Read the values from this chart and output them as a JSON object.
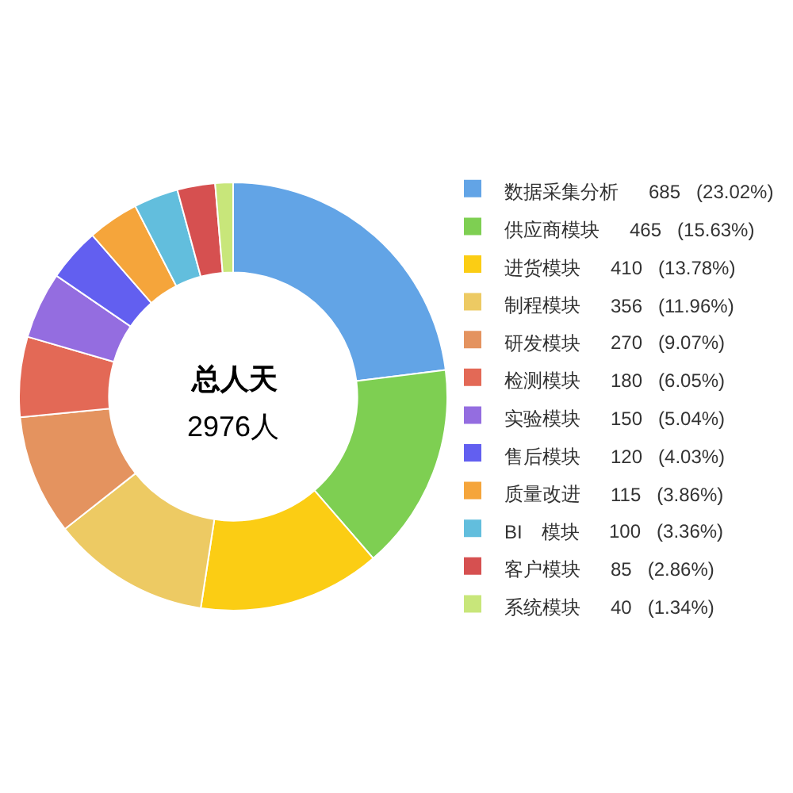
{
  "chart_data": {
    "type": "donut",
    "categories": [
      "数据采集分析",
      "供应商模块",
      "进货模块",
      "制程模块",
      "研发模块",
      "检测模块",
      "实验模块",
      "售后模块",
      "质量改进",
      "BI　模块",
      "客户模块",
      "系统模块"
    ],
    "values": [
      685,
      465,
      410,
      356,
      270,
      180,
      150,
      120,
      115,
      100,
      85,
      40
    ],
    "value_labels": [
      "685 (23.02%)",
      "465 (15.63%)",
      "410 (13.78%)",
      "356 (11.96%)",
      "270 (9.07%)",
      "180 (6.05%)",
      "150 (5.04%)",
      "120 (4.03%)",
      "115 (3.86%)",
      "100 (3.36%)",
      "85 (2.86%)",
      "40 (1.34%)"
    ],
    "colors": [
      "#62a4e6",
      "#7ecf52",
      "#fbcd14",
      "#edca63",
      "#e4935f",
      "#e36956",
      "#946de0",
      "#625ff0",
      "#f5a53b",
      "#62bedd",
      "#d65050",
      "#c8e67a"
    ],
    "annotations": [
      "总人天",
      "2976人"
    ],
    "legend": "right"
  }
}
